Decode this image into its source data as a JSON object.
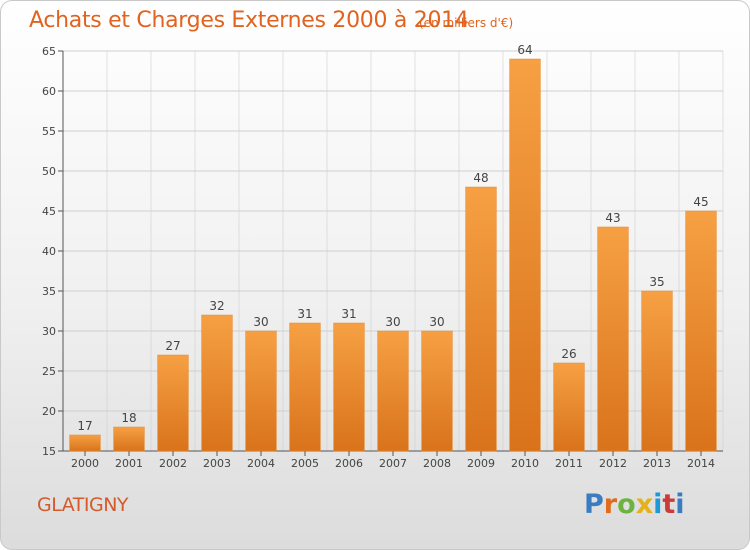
{
  "header": {
    "title": "Achats et Charges Externes 2000 à 2014",
    "subtitle": "(en milliers d'€)"
  },
  "footer": {
    "city": "GLATIGNY",
    "brand": "Proxiti"
  },
  "colors": {
    "bar": "#f0922f",
    "bar_dark": "#d9741c",
    "title": "#e0631f",
    "grid": "#cfcfcf"
  },
  "chart_data": {
    "type": "bar",
    "categories": [
      "2000",
      "2001",
      "2002",
      "2003",
      "2004",
      "2005",
      "2006",
      "2007",
      "2008",
      "2009",
      "2010",
      "2011",
      "2012",
      "2013",
      "2014"
    ],
    "values": [
      17,
      18,
      27,
      32,
      30,
      31,
      31,
      30,
      30,
      48,
      64,
      26,
      43,
      35,
      45
    ],
    "title": "Achats et Charges Externes 2000 à 2014",
    "xlabel": "",
    "ylabel": "",
    "ylim": [
      15,
      65
    ],
    "yticks": [
      15,
      20,
      25,
      30,
      35,
      40,
      45,
      50,
      55,
      60,
      65
    ],
    "grid": true,
    "data_labels": true
  }
}
